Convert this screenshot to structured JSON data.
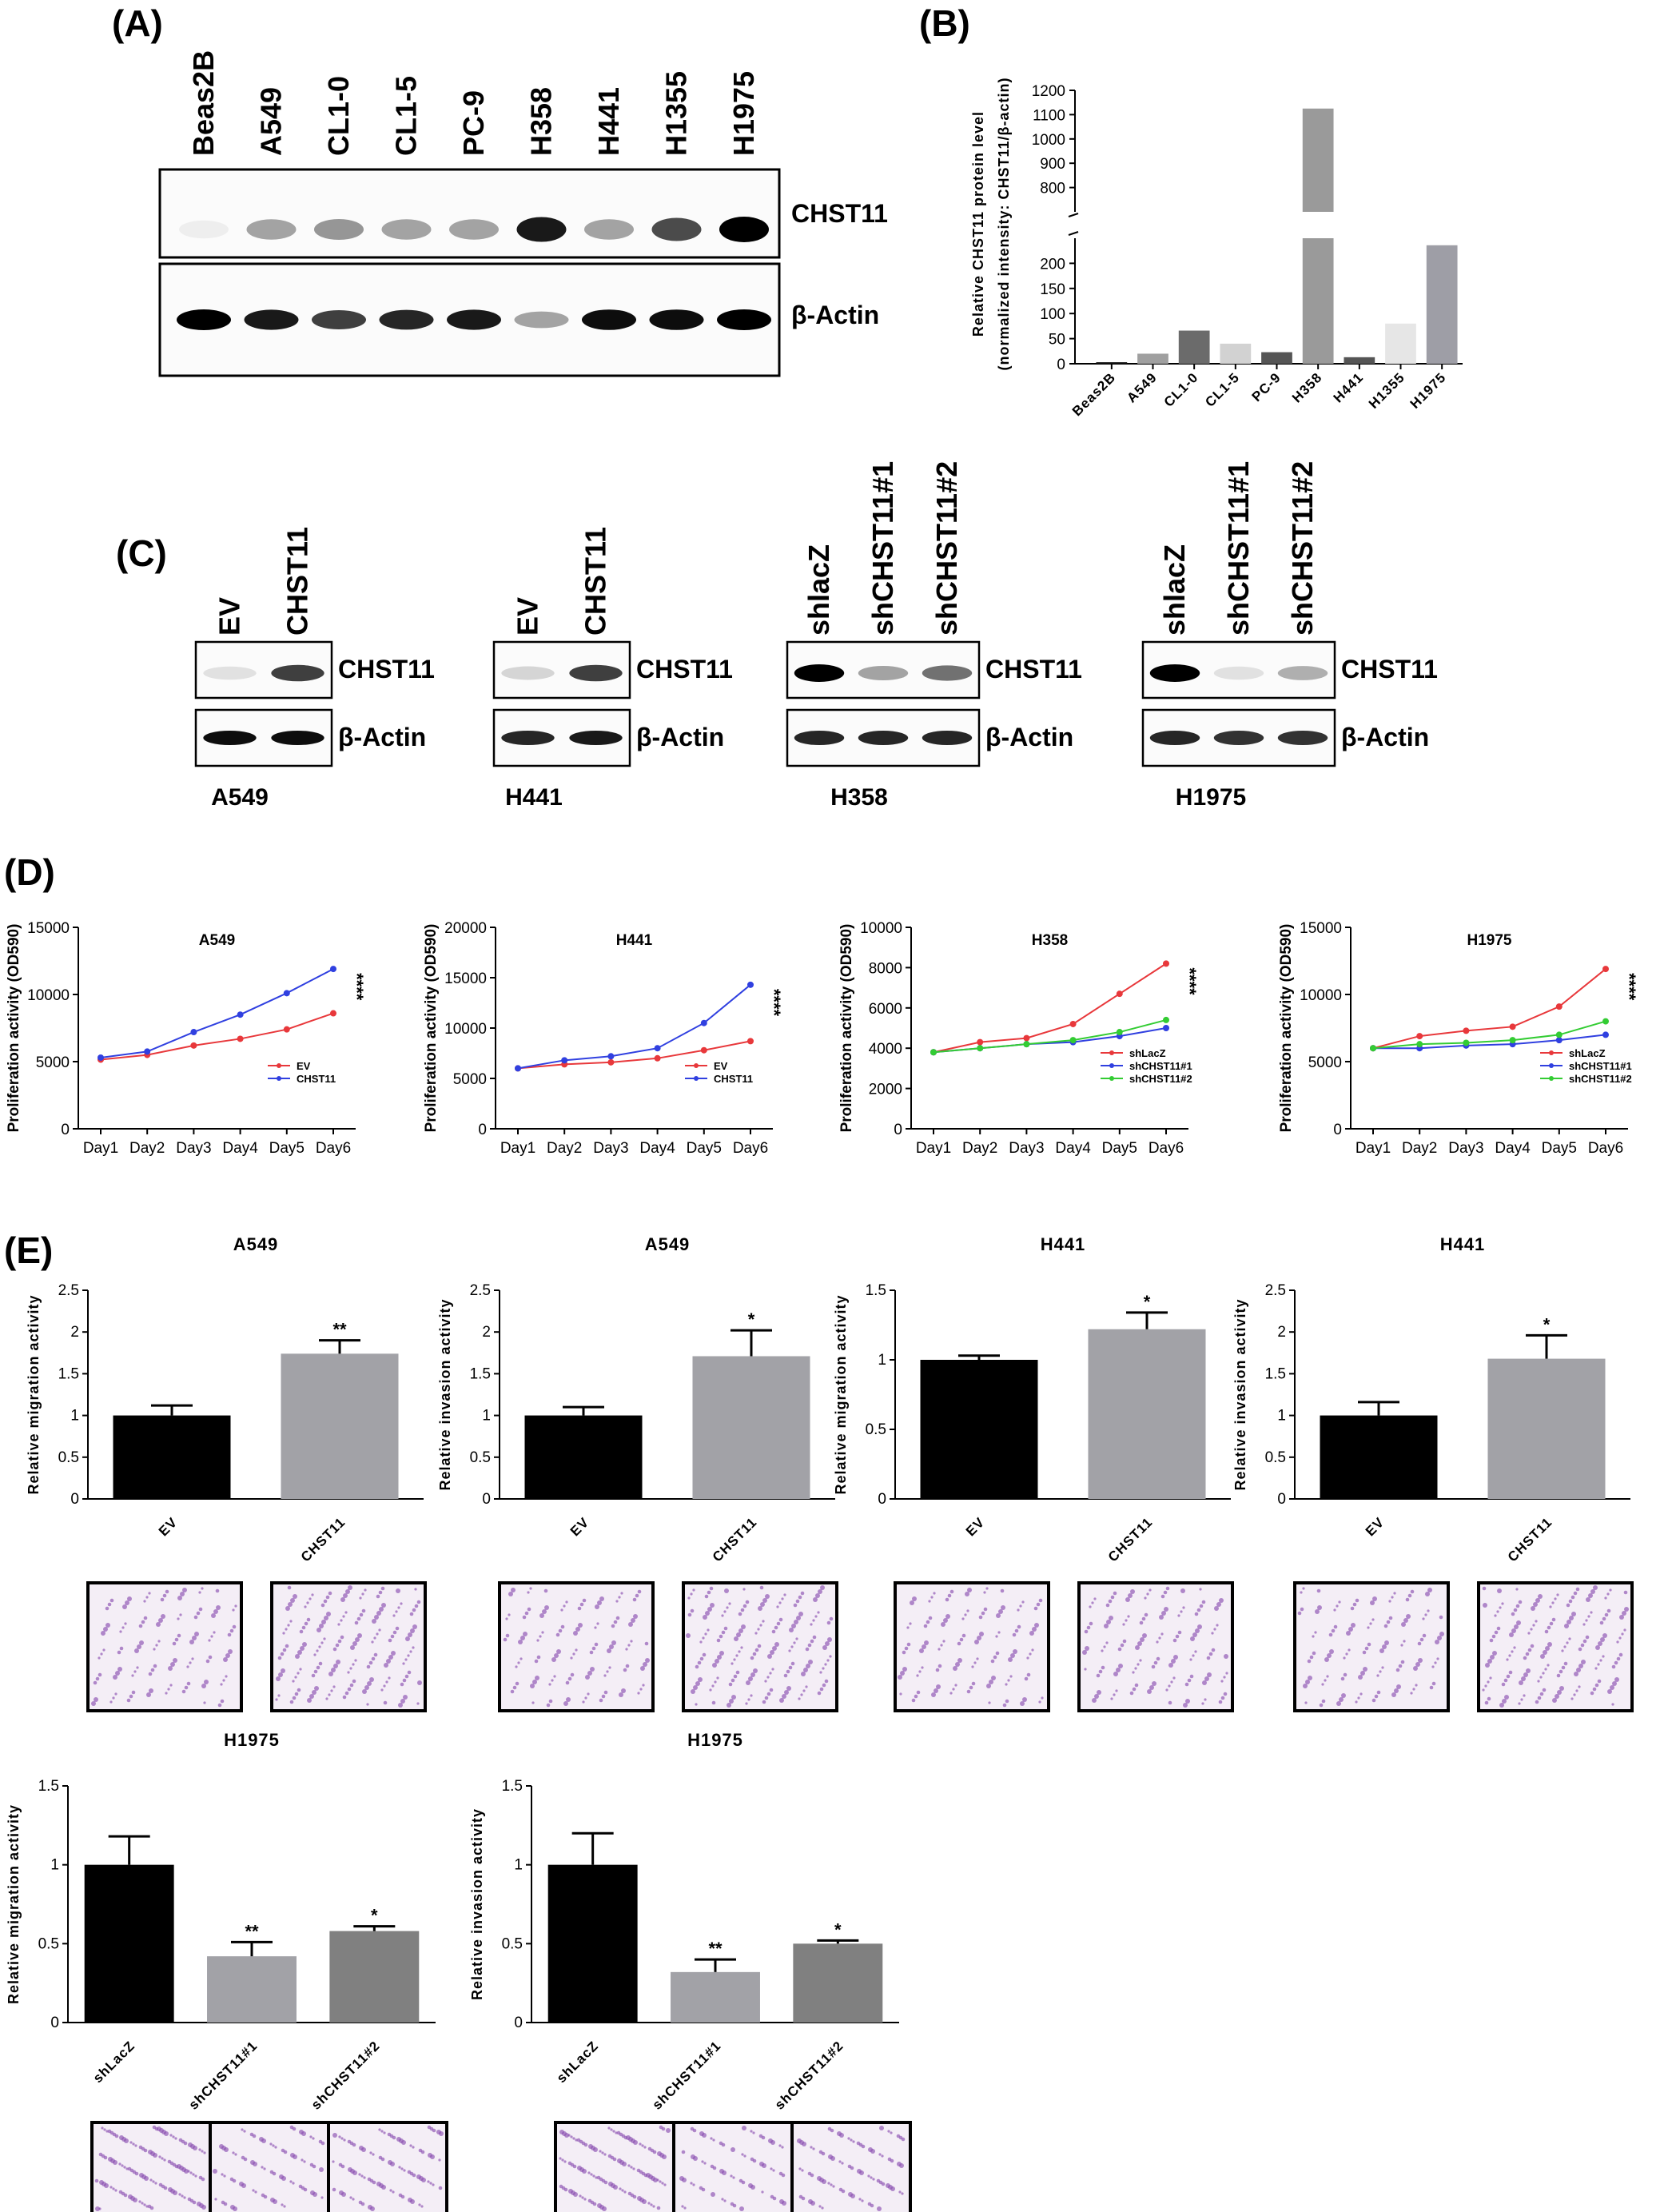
{
  "panel_labels": [
    "(A)",
    "(B)",
    "(C)",
    "(D)",
    "(E)"
  ],
  "panel_a": {
    "lanes": [
      "Beas2B",
      "A549",
      "CL1-0",
      "CL1-5",
      "PC-9",
      "H358",
      "H441",
      "H1355",
      "H1975"
    ],
    "bands": [
      "CHST11",
      "β-Actin"
    ],
    "chst11_intensity": [
      0.05,
      0.35,
      0.4,
      0.35,
      0.35,
      0.9,
      0.35,
      0.7,
      1.0
    ],
    "actin_intensity": [
      1.0,
      0.9,
      0.75,
      0.85,
      0.9,
      0.35,
      0.95,
      0.95,
      1.0
    ]
  },
  "panel_c": {
    "blots": [
      {
        "cell": "A549",
        "lanes": [
          "EV",
          "CHST11"
        ],
        "chst11_intensity": [
          0.1,
          0.75
        ],
        "actin_intensity": [
          0.95,
          0.95
        ]
      },
      {
        "cell": "H441",
        "lanes": [
          "EV",
          "CHST11"
        ],
        "chst11_intensity": [
          0.15,
          0.75
        ],
        "actin_intensity": [
          0.85,
          0.9
        ]
      },
      {
        "cell": "H358",
        "lanes": [
          "shlacZ",
          "shCHST11#1",
          "shCHST11#2"
        ],
        "chst11_intensity": [
          1.0,
          0.35,
          0.55
        ],
        "actin_intensity": [
          0.85,
          0.85,
          0.85
        ]
      },
      {
        "cell": "H1975",
        "lanes": [
          "shlacZ",
          "shCHST11#1",
          "shCHST11#2"
        ],
        "chst11_intensity": [
          1.0,
          0.1,
          0.3
        ],
        "actin_intensity": [
          0.85,
          0.8,
          0.8
        ]
      }
    ],
    "band_labels": [
      "CHST11",
      "β-Actin"
    ]
  },
  "chart_data": [
    {
      "id": "B",
      "type": "bar",
      "ylabel": "Relative CHST11 protein level",
      "ylabel2": "(normalized intensity: CHST11/β-actin)",
      "categories": [
        "Beas2B",
        "A549",
        "CL1-0",
        "CL1-5",
        "PC-9",
        "H358",
        "H441",
        "H1355",
        "H1975"
      ],
      "values": [
        3,
        20,
        66,
        40,
        23,
        1125,
        13,
        80,
        236
      ],
      "colors": [
        "#111111",
        "#a0a0a0",
        "#6b6b6b",
        "#d2d2d2",
        "#555555",
        "#9a9a9a",
        "#555555",
        "#e6e6e6",
        "#9e9ea6"
      ],
      "broken_axis": {
        "lower": [
          0,
          250
        ],
        "upper": [
          700,
          1200
        ]
      },
      "yticks_lower": [
        0,
        50,
        100,
        150,
        200
      ],
      "yticks_upper": [
        800,
        900,
        1000,
        1100,
        1200
      ]
    },
    {
      "id": "D1",
      "type": "line",
      "title": "A549",
      "ylabel": "Proliferation activity (OD590)",
      "x": [
        "Day1",
        "Day2",
        "Day3",
        "Day4",
        "Day5",
        "Day6"
      ],
      "ylim": [
        0,
        15000
      ],
      "yticks": [
        0,
        5000,
        10000,
        15000
      ],
      "series": [
        {
          "name": "EV",
          "color": "#e8383b",
          "values": [
            5150,
            5500,
            6200,
            6700,
            7400,
            8600
          ]
        },
        {
          "name": "CHST11",
          "color": "#3040e0",
          "values": [
            5300,
            5750,
            7200,
            8500,
            10100,
            11900
          ]
        }
      ],
      "significance": "****"
    },
    {
      "id": "D2",
      "type": "line",
      "title": "H441",
      "ylabel": "Proliferation activity (OD590)",
      "x": [
        "Day1",
        "Day2",
        "Day3",
        "Day4",
        "Day5",
        "Day6"
      ],
      "ylim": [
        0,
        20000
      ],
      "yticks": [
        0,
        5000,
        10000,
        15000,
        20000
      ],
      "series": [
        {
          "name": "EV",
          "color": "#e8383b",
          "values": [
            6000,
            6400,
            6600,
            7000,
            7800,
            8700
          ]
        },
        {
          "name": "CHST11",
          "color": "#3040e0",
          "values": [
            6000,
            6800,
            7200,
            8000,
            10500,
            14300
          ]
        }
      ],
      "significance": "****"
    },
    {
      "id": "D3",
      "type": "line",
      "title": "H358",
      "ylabel": "Proliferation activity (OD590)",
      "x": [
        "Day1",
        "Day2",
        "Day3",
        "Day4",
        "Day5",
        "Day6"
      ],
      "ylim": [
        0,
        10000
      ],
      "yticks": [
        0,
        2000,
        4000,
        6000,
        8000,
        10000
      ],
      "series": [
        {
          "name": "shLacZ",
          "color": "#e8383b",
          "values": [
            3800,
            4300,
            4500,
            5200,
            6700,
            8200
          ]
        },
        {
          "name": "shCHST11#1",
          "color": "#3040e0",
          "values": [
            3800,
            4000,
            4200,
            4300,
            4600,
            5000
          ]
        },
        {
          "name": "shCHST11#2",
          "color": "#33cc33",
          "values": [
            3800,
            4000,
            4200,
            4400,
            4800,
            5400
          ]
        }
      ],
      "significance": "****"
    },
    {
      "id": "D4",
      "type": "line",
      "title": "H1975",
      "ylabel": "Proliferation activity (OD590)",
      "x": [
        "Day1",
        "Day2",
        "Day3",
        "Day4",
        "Day5",
        "Day6"
      ],
      "ylim": [
        0,
        15000
      ],
      "yticks": [
        0,
        5000,
        10000,
        15000
      ],
      "series": [
        {
          "name": "shLacZ",
          "color": "#e8383b",
          "values": [
            6000,
            6900,
            7300,
            7600,
            9100,
            11900
          ]
        },
        {
          "name": "shCHST11#1",
          "color": "#3040e0",
          "values": [
            6000,
            6000,
            6200,
            6300,
            6600,
            7000
          ]
        },
        {
          "name": "shCHST11#2",
          "color": "#33cc33",
          "values": [
            6000,
            6300,
            6400,
            6600,
            7000,
            8000
          ]
        }
      ],
      "significance": "****"
    },
    {
      "id": "E1",
      "type": "bar",
      "title": "A549",
      "ylabel": "Relative migration activity",
      "categories": [
        "EV",
        "CHST11"
      ],
      "values": [
        1.0,
        1.74
      ],
      "errors": [
        0.12,
        0.16
      ],
      "significance": [
        "",
        "**"
      ],
      "ylim": [
        0,
        2.5
      ],
      "yticks": [
        0.0,
        0.5,
        1.0,
        1.5,
        2.0,
        2.5
      ]
    },
    {
      "id": "E2",
      "type": "bar",
      "title": "A549",
      "ylabel": "Relative invasion activity",
      "categories": [
        "EV",
        "CHST11"
      ],
      "values": [
        1.0,
        1.71
      ],
      "errors": [
        0.1,
        0.31
      ],
      "significance": [
        "",
        "*"
      ],
      "ylim": [
        0,
        2.5
      ],
      "yticks": [
        0.0,
        0.5,
        1.0,
        1.5,
        2.0,
        2.5
      ]
    },
    {
      "id": "E3",
      "type": "bar",
      "title": "H441",
      "ylabel": "Relative migration activity",
      "categories": [
        "EV",
        "CHST11"
      ],
      "values": [
        1.0,
        1.22
      ],
      "errors": [
        0.03,
        0.12
      ],
      "significance": [
        "",
        "*"
      ],
      "ylim": [
        0,
        1.5
      ],
      "yticks": [
        0.0,
        0.5,
        1.0,
        1.5
      ]
    },
    {
      "id": "E4",
      "type": "bar",
      "title": "H441",
      "ylabel": "Relative invasion activity",
      "categories": [
        "EV",
        "CHST11"
      ],
      "values": [
        1.0,
        1.68
      ],
      "errors": [
        0.16,
        0.28
      ],
      "significance": [
        "",
        "*"
      ],
      "ylim": [
        0,
        2.5
      ],
      "yticks": [
        0.0,
        0.5,
        1.0,
        1.5,
        2.0,
        2.5
      ]
    },
    {
      "id": "E5",
      "type": "bar",
      "title": "H1975",
      "ylabel": "Relative migration activity",
      "categories": [
        "shLacZ",
        "shCHST11#1",
        "shCHST11#2"
      ],
      "values": [
        1.0,
        0.42,
        0.58
      ],
      "errors": [
        0.18,
        0.09,
        0.03
      ],
      "significance": [
        "",
        "**",
        "*"
      ],
      "ylim": [
        0,
        1.5
      ],
      "yticks": [
        0.0,
        0.5,
        1.0,
        1.5
      ]
    },
    {
      "id": "E6",
      "type": "bar",
      "title": "H1975",
      "ylabel": "Relative invasion activity",
      "categories": [
        "shLacZ",
        "shCHST11#1",
        "shCHST11#2"
      ],
      "values": [
        1.0,
        0.32,
        0.5
      ],
      "errors": [
        0.2,
        0.08,
        0.02
      ],
      "significance": [
        "",
        "**",
        "*"
      ],
      "ylim": [
        0,
        1.5
      ],
      "yticks": [
        0.0,
        0.5,
        1.0,
        1.5
      ]
    }
  ],
  "bar_colors_two": [
    "#000000",
    "#a2a2a7"
  ],
  "bar_colors_three": [
    "#000000",
    "#a2a2a7",
    "#808080"
  ],
  "stain_color": "#8a4fb0"
}
